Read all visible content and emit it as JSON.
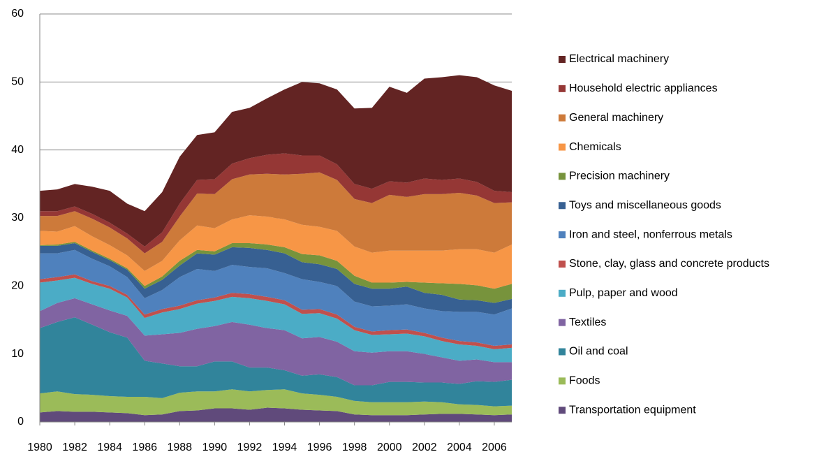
{
  "chart_data": {
    "type": "stacked_area",
    "x": [
      1980,
      1981,
      1982,
      1983,
      1984,
      1985,
      1986,
      1987,
      1988,
      1989,
      1990,
      1991,
      1992,
      1993,
      1994,
      1995,
      1996,
      1997,
      1998,
      1999,
      2000,
      2001,
      2002,
      2003,
      2004,
      2005,
      2006,
      2007
    ],
    "xlim": [
      1980,
      2007
    ],
    "xticks": [
      1980,
      1982,
      1984,
      1986,
      1988,
      1990,
      1992,
      1994,
      1996,
      1998,
      2000,
      2002,
      2004,
      2006
    ],
    "ylim": [
      0,
      60
    ],
    "yticks": [
      0,
      10,
      20,
      30,
      40,
      50,
      60
    ],
    "grid": true,
    "legend": "right",
    "series": [
      {
        "name": "Transportation equipment",
        "color": "#604a7b",
        "values": [
          1.4,
          1.6,
          1.5,
          1.5,
          1.4,
          1.3,
          1.0,
          1.1,
          1.6,
          1.7,
          2.0,
          2.0,
          1.8,
          2.1,
          2.0,
          1.8,
          1.7,
          1.6,
          1.1,
          1.0,
          1.0,
          1.0,
          1.1,
          1.2,
          1.2,
          1.1,
          1.0,
          1.1
        ]
      },
      {
        "name": "Foods",
        "color": "#9bbb59",
        "values": [
          2.8,
          2.9,
          2.6,
          2.5,
          2.4,
          2.4,
          2.7,
          2.4,
          2.7,
          2.8,
          2.5,
          2.8,
          2.7,
          2.6,
          2.8,
          2.4,
          2.3,
          2.1,
          2.0,
          1.9,
          1.9,
          1.9,
          1.9,
          1.7,
          1.4,
          1.4,
          1.3,
          1.3
        ]
      },
      {
        "name": "Oil and coal",
        "color": "#31849b",
        "values": [
          9.6,
          10.2,
          11.3,
          10.3,
          9.4,
          8.7,
          5.3,
          5.1,
          3.9,
          3.7,
          4.4,
          4.1,
          3.5,
          3.3,
          2.8,
          2.6,
          3.0,
          2.9,
          2.3,
          2.5,
          3.0,
          3.0,
          2.8,
          2.9,
          3.0,
          3.5,
          3.6,
          3.8
        ]
      },
      {
        "name": "Textiles",
        "color": "#8064a2",
        "values": [
          2.5,
          2.8,
          2.8,
          3.0,
          3.2,
          3.2,
          3.7,
          4.3,
          4.9,
          5.5,
          5.2,
          5.8,
          6.3,
          5.8,
          5.9,
          5.5,
          5.5,
          5.2,
          5.0,
          4.8,
          4.5,
          4.5,
          4.2,
          3.7,
          3.4,
          3.2,
          2.9,
          2.6
        ]
      },
      {
        "name": "Pulp, paper and wood",
        "color": "#4bacc6",
        "values": [
          4.2,
          3.3,
          3.0,
          3.0,
          3.2,
          2.7,
          2.6,
          3.2,
          3.5,
          3.7,
          3.7,
          3.7,
          3.9,
          4.0,
          3.8,
          3.6,
          3.5,
          3.4,
          3.1,
          2.6,
          2.5,
          2.6,
          2.6,
          2.4,
          2.4,
          2.0,
          1.9,
          2.1
        ]
      },
      {
        "name": "Stone, clay, glass and concrete products",
        "color": "#c0504d",
        "values": [
          0.5,
          0.5,
          0.5,
          0.4,
          0.4,
          0.4,
          0.5,
          0.5,
          0.5,
          0.5,
          0.5,
          0.6,
          0.6,
          0.6,
          0.6,
          0.6,
          0.6,
          0.6,
          0.5,
          0.5,
          0.6,
          0.6,
          0.5,
          0.5,
          0.5,
          0.5,
          0.5,
          0.5
        ]
      },
      {
        "name": "Iron and steel, nonferrous metals",
        "color": "#4f81bd",
        "values": [
          3.8,
          3.5,
          3.6,
          3.3,
          2.9,
          2.6,
          2.4,
          2.8,
          4.2,
          4.6,
          3.9,
          4.1,
          4.0,
          4.2,
          4.0,
          4.5,
          4.0,
          4.2,
          3.7,
          3.7,
          3.6,
          3.7,
          3.6,
          3.9,
          4.3,
          4.5,
          4.6,
          5.3
        ]
      },
      {
        "name": "Toys and miscellaneous goods",
        "color": "#376092",
        "values": [
          1.1,
          1.1,
          1.0,
          1.0,
          0.9,
          1.1,
          1.4,
          1.5,
          1.7,
          2.3,
          2.4,
          2.6,
          2.8,
          2.7,
          2.9,
          2.5,
          2.6,
          2.5,
          2.6,
          2.6,
          2.5,
          2.6,
          2.3,
          2.4,
          1.8,
          1.7,
          1.7,
          1.4
        ]
      },
      {
        "name": "Precision machinery",
        "color": "#77933c",
        "values": [
          0.1,
          0.2,
          0.2,
          0.2,
          0.2,
          0.2,
          0.4,
          0.5,
          0.7,
          0.5,
          0.5,
          0.6,
          0.7,
          0.8,
          0.9,
          1.2,
          1.3,
          1.2,
          1.2,
          0.9,
          0.9,
          0.7,
          1.5,
          1.7,
          2.3,
          2.2,
          2.1,
          2.2
        ]
      },
      {
        "name": "Chemicals",
        "color": "#f79646",
        "values": [
          2.1,
          1.9,
          2.3,
          2.1,
          2.0,
          1.9,
          2.2,
          2.3,
          3.0,
          3.6,
          3.4,
          3.5,
          4.1,
          4.1,
          4.1,
          4.3,
          4.2,
          4.4,
          4.3,
          4.4,
          4.7,
          4.6,
          4.7,
          4.8,
          5.1,
          5.3,
          5.3,
          5.8
        ]
      },
      {
        "name": "General machinery",
        "color": "#cd7a3a",
        "values": [
          2.2,
          2.3,
          2.2,
          2.6,
          2.6,
          2.5,
          2.6,
          2.8,
          3.5,
          4.7,
          5.0,
          5.9,
          6.0,
          6.3,
          6.6,
          7.5,
          8.0,
          7.5,
          7.0,
          7.3,
          8.2,
          7.9,
          8.3,
          8.3,
          8.3,
          7.9,
          7.3,
          6.2
        ]
      },
      {
        "name": "Household electric appliances",
        "color": "#953735",
        "values": [
          0.7,
          0.7,
          0.7,
          0.7,
          0.7,
          0.7,
          1.0,
          1.4,
          1.9,
          2.0,
          2.2,
          2.3,
          2.4,
          2.8,
          3.1,
          2.7,
          2.5,
          2.3,
          2.2,
          2.1,
          2.0,
          2.1,
          2.3,
          2.1,
          2.1,
          2.0,
          1.8,
          1.5
        ]
      },
      {
        "name": "Electrical machinery",
        "color": "#632423",
        "values": [
          3.0,
          3.2,
          3.3,
          4.0,
          4.7,
          4.4,
          5.2,
          5.9,
          6.9,
          6.6,
          6.9,
          7.6,
          7.4,
          8.3,
          9.4,
          10.8,
          10.6,
          11.0,
          11.1,
          11.9,
          13.9,
          13.2,
          14.7,
          15.1,
          15.2,
          15.4,
          15.5,
          14.9
        ]
      }
    ]
  }
}
